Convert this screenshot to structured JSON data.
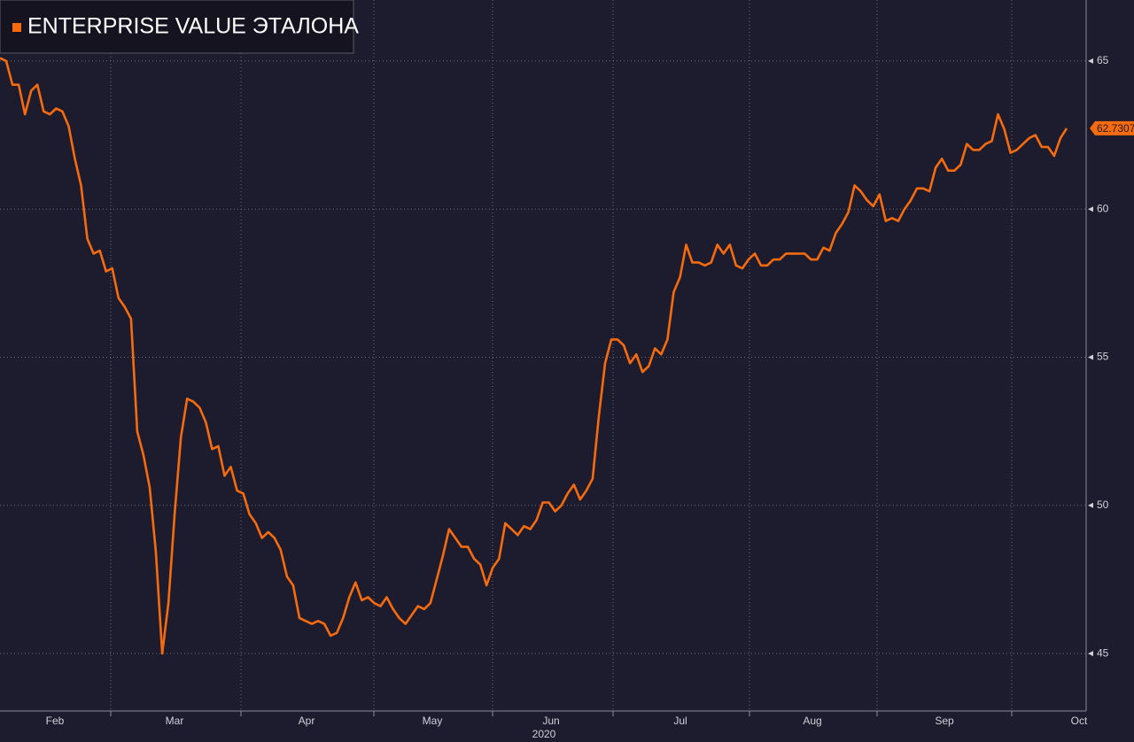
{
  "chart_data": {
    "type": "line",
    "series": [
      {
        "name": "ENTERPRISE VALUE ЭТАЛОНА",
        "color": "#f76b0f",
        "values": [
          65.1,
          65.0,
          64.2,
          64.2,
          63.2,
          64.0,
          64.2,
          63.3,
          63.2,
          63.4,
          63.3,
          62.8,
          61.7,
          60.8,
          59.0,
          58.5,
          58.6,
          57.9,
          58.0,
          57.0,
          56.7,
          56.3,
          52.5,
          51.7,
          50.6,
          48.4,
          45.0,
          46.7,
          49.7,
          52.3,
          53.6,
          53.5,
          53.3,
          52.8,
          51.9,
          52.0,
          51.0,
          51.3,
          50.5,
          50.4,
          49.7,
          49.4,
          48.9,
          49.1,
          48.9,
          48.5,
          47.6,
          47.3,
          46.2,
          46.1,
          46.0,
          46.1,
          46.0,
          45.6,
          45.7,
          46.2,
          46.9,
          47.4,
          46.8,
          46.9,
          46.7,
          46.6,
          46.9,
          46.5,
          46.2,
          46.0,
          46.3,
          46.6,
          46.5,
          46.7,
          47.5,
          48.3,
          49.2,
          48.9,
          48.6,
          48.6,
          48.2,
          48.0,
          47.3,
          47.9,
          48.2,
          49.4,
          49.2,
          49.0,
          49.3,
          49.2,
          49.5,
          50.1,
          50.1,
          49.8,
          50.0,
          50.4,
          50.7,
          50.2,
          50.5,
          50.9,
          53.0,
          54.8,
          55.6,
          55.6,
          55.4,
          54.8,
          55.1,
          54.5,
          54.7,
          55.3,
          55.1,
          55.6,
          57.2,
          57.7,
          58.8,
          58.2,
          58.2,
          58.1,
          58.2,
          58.8,
          58.5,
          58.8,
          58.1,
          58.0,
          58.3,
          58.5,
          58.1,
          58.1,
          58.3,
          58.3,
          58.5,
          58.5,
          58.5,
          58.5,
          58.3,
          58.3,
          58.7,
          58.6,
          59.2,
          59.5,
          59.9,
          60.8,
          60.6,
          60.3,
          60.1,
          60.5,
          59.6,
          59.7,
          59.6,
          60.0,
          60.3,
          60.7,
          60.7,
          60.6,
          61.4,
          61.7,
          61.3,
          61.3,
          61.5,
          62.2,
          62.0,
          62.0,
          62.2,
          62.3,
          63.2,
          62.7,
          61.9,
          62.0,
          62.2,
          62.4,
          62.5,
          62.1,
          62.1,
          61.8,
          62.4,
          62.7307
        ]
      }
    ],
    "xtick_labels": [
      "Feb",
      "Mar",
      "Apr",
      "May",
      "Jun",
      "Jul",
      "Aug",
      "Sep",
      "Oct"
    ],
    "year": "2020",
    "ylim": [
      43.06,
      67.06
    ],
    "yticks": [
      45,
      50,
      55,
      60,
      65
    ],
    "grid": true
  }
}
